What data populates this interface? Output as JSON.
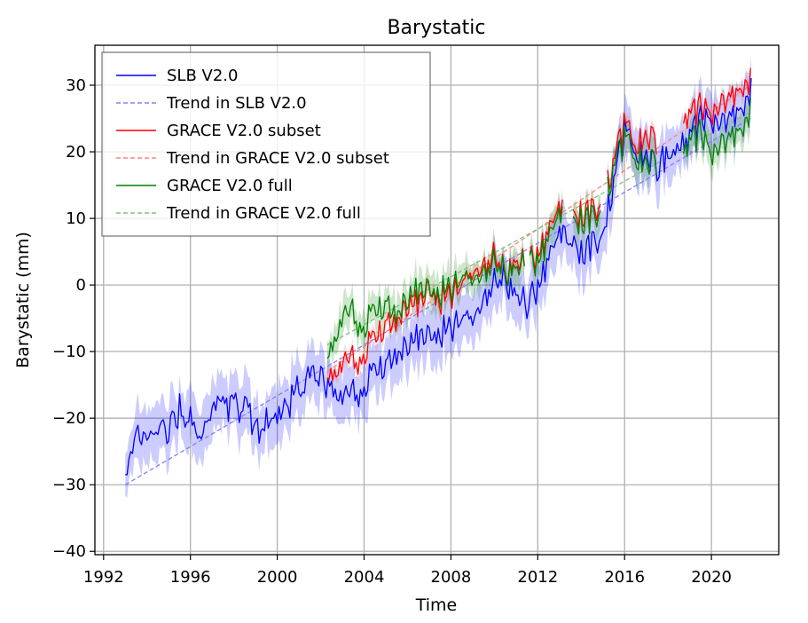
{
  "chart_data": {
    "type": "line",
    "title": "Barystatic",
    "xlabel": "Time",
    "ylabel": "Barystatic (mm)",
    "xlim": [
      1991.6,
      2023.1
    ],
    "ylim": [
      -40.5,
      36
    ],
    "xticks": [
      1992,
      1996,
      2000,
      2004,
      2008,
      2012,
      2016,
      2020
    ],
    "xtick_labels": [
      "1992",
      "1996",
      "2000",
      "2004",
      "2008",
      "2012",
      "2016",
      "2020"
    ],
    "yticks": [
      -40,
      -30,
      -20,
      -10,
      0,
      10,
      20,
      30
    ],
    "ytick_labels": [
      "−40",
      "−30",
      "−20",
      "−10",
      "0",
      "10",
      "20",
      "30"
    ],
    "grid": true,
    "legend_position": "top-left",
    "series": [
      {
        "name": "SLB V2.0",
        "kind": "line",
        "color": "#0000ff",
        "band_color": "#0000ff",
        "band_halfwidth": 4,
        "anchors": [
          [
            1993.0,
            -28.5
          ],
          [
            1993.5,
            -22
          ],
          [
            1994.0,
            -24
          ],
          [
            1994.5,
            -21
          ],
          [
            1995.0,
            -22
          ],
          [
            1995.5,
            -19
          ],
          [
            1996.0,
            -20
          ],
          [
            1996.5,
            -22
          ],
          [
            1997.0,
            -19
          ],
          [
            1997.5,
            -18
          ],
          [
            1998.0,
            -19
          ],
          [
            1998.5,
            -17
          ],
          [
            1999.0,
            -22
          ],
          [
            1999.5,
            -21
          ],
          [
            2000.0,
            -20
          ],
          [
            2000.5,
            -18
          ],
          [
            2001.0,
            -16
          ],
          [
            2001.5,
            -14
          ],
          [
            2002.0,
            -13
          ],
          [
            2002.5,
            -16
          ],
          [
            2003.0,
            -16
          ],
          [
            2003.5,
            -17
          ],
          [
            2004.0,
            -15
          ],
          [
            2004.5,
            -13
          ],
          [
            2005.0,
            -12
          ],
          [
            2005.5,
            -10
          ],
          [
            2006.0,
            -9
          ],
          [
            2006.5,
            -8
          ],
          [
            2007.0,
            -8
          ],
          [
            2007.5,
            -7
          ],
          [
            2008.0,
            -6
          ],
          [
            2008.5,
            -5
          ],
          [
            2009.0,
            -5
          ],
          [
            2009.5,
            -2
          ],
          [
            2010.0,
            0
          ],
          [
            2010.5,
            1
          ],
          [
            2011.0,
            -2
          ],
          [
            2011.5,
            -3
          ],
          [
            2012.0,
            0
          ],
          [
            2012.5,
            4
          ],
          [
            2013.0,
            8
          ],
          [
            2013.5,
            6
          ],
          [
            2014.0,
            4
          ],
          [
            2014.5,
            6
          ],
          [
            2015.0,
            8
          ],
          [
            2015.5,
            15
          ],
          [
            2016.0,
            23
          ],
          [
            2016.5,
            20
          ],
          [
            2017.0,
            19
          ],
          [
            2017.5,
            18
          ],
          [
            2018.0,
            19
          ],
          [
            2018.5,
            21
          ],
          [
            2019.0,
            23
          ],
          [
            2019.5,
            25
          ],
          [
            2020.0,
            25
          ],
          [
            2020.5,
            24
          ],
          [
            2021.0,
            26
          ],
          [
            2021.5,
            27
          ],
          [
            2021.8,
            29
          ]
        ],
        "start": 1993.0,
        "end": 2021.8
      },
      {
        "name": "Trend in SLB V2.0",
        "kind": "trend",
        "color": "#8080ff",
        "x": [
          1993.0,
          2021.8
        ],
        "y": [
          -30,
          25
        ]
      },
      {
        "name": "GRACE V2.0 subset",
        "kind": "line",
        "color": "#ff0000",
        "band_color": "#ff6060",
        "band_halfwidth": 1.2,
        "anchors": [
          [
            2002.3,
            -15
          ],
          [
            2003.0,
            -11
          ],
          [
            2003.5,
            -12
          ],
          [
            2004.0,
            -10
          ],
          [
            2004.5,
            -8
          ],
          [
            2005.0,
            -6
          ],
          [
            2005.5,
            -5
          ],
          [
            2006.0,
            -3
          ],
          [
            2006.5,
            -3
          ],
          [
            2007.0,
            -1
          ],
          [
            2007.5,
            -2
          ],
          [
            2008.0,
            -1
          ],
          [
            2008.5,
            0
          ],
          [
            2009.0,
            2
          ],
          [
            2009.5,
            3
          ],
          [
            2010.0,
            4
          ],
          [
            2010.5,
            2
          ],
          [
            2011.0,
            3
          ],
          [
            2011.5,
            3
          ],
          [
            2012.0,
            5
          ],
          [
            2012.5,
            8
          ],
          [
            2013.0,
            12
          ],
          [
            2013.5,
            9
          ],
          [
            2014.0,
            10
          ],
          [
            2014.5,
            11
          ],
          [
            2015.0,
            13
          ],
          [
            2015.5,
            18
          ],
          [
            2016.0,
            24
          ],
          [
            2016.5,
            21
          ],
          [
            2017.0,
            22
          ],
          [
            2017.5,
            22
          ],
          [
            2018.0,
            23
          ],
          [
            2018.5,
            26
          ],
          [
            2019.0,
            26
          ],
          [
            2019.5,
            27
          ],
          [
            2020.0,
            26
          ],
          [
            2020.5,
            27
          ],
          [
            2021.0,
            29
          ],
          [
            2021.5,
            30
          ],
          [
            2021.8,
            30.5
          ]
        ],
        "start": 2002.3,
        "end": 2021.8,
        "gaps": [
          [
            2011.4,
            2011.6
          ],
          [
            2013.2,
            2013.6
          ],
          [
            2014.9,
            2015.2
          ],
          [
            2017.5,
            2018.7
          ]
        ]
      },
      {
        "name": "Trend in GRACE V2.0 subset",
        "kind": "trend",
        "color": "#ff8080",
        "x": [
          2002.3,
          2021.8
        ],
        "y": [
          -13,
          30
        ]
      },
      {
        "name": "GRACE V2.0 full",
        "kind": "line",
        "color": "#008000",
        "band_color": "#008000",
        "band_halfwidth": 2.5,
        "anchors": [
          [
            2002.3,
            -12
          ],
          [
            2003.0,
            -4
          ],
          [
            2003.5,
            -5
          ],
          [
            2004.0,
            -6
          ],
          [
            2004.5,
            -4
          ],
          [
            2005.0,
            -3
          ],
          [
            2005.5,
            -4
          ],
          [
            2006.0,
            -2
          ],
          [
            2006.5,
            -1
          ],
          [
            2007.0,
            -1
          ],
          [
            2007.5,
            -1
          ],
          [
            2008.0,
            0
          ],
          [
            2008.5,
            1
          ],
          [
            2009.0,
            1
          ],
          [
            2009.5,
            2
          ],
          [
            2010.0,
            3
          ],
          [
            2010.5,
            2
          ],
          [
            2011.0,
            2
          ],
          [
            2011.5,
            3
          ],
          [
            2012.0,
            4
          ],
          [
            2012.5,
            7
          ],
          [
            2013.0,
            11
          ],
          [
            2013.5,
            8
          ],
          [
            2014.0,
            9
          ],
          [
            2014.5,
            10
          ],
          [
            2015.0,
            12
          ],
          [
            2015.5,
            17
          ],
          [
            2016.0,
            22
          ],
          [
            2016.5,
            19
          ],
          [
            2017.0,
            18
          ],
          [
            2017.5,
            19
          ],
          [
            2018.0,
            20
          ],
          [
            2018.5,
            21
          ],
          [
            2019.0,
            22
          ],
          [
            2019.5,
            23
          ],
          [
            2020.0,
            20
          ],
          [
            2020.5,
            21
          ],
          [
            2021.0,
            23
          ],
          [
            2021.5,
            24
          ],
          [
            2021.8,
            26
          ]
        ],
        "start": 2002.3,
        "end": 2021.8,
        "gaps": [
          [
            2011.4,
            2011.6
          ],
          [
            2013.2,
            2013.6
          ],
          [
            2014.9,
            2015.2
          ],
          [
            2017.5,
            2018.7
          ]
        ]
      },
      {
        "name": "Trend in GRACE V2.0 full",
        "kind": "trend",
        "color": "#80c080",
        "x": [
          2002.3,
          2021.8
        ],
        "y": [
          -9,
          26
        ]
      }
    ]
  }
}
